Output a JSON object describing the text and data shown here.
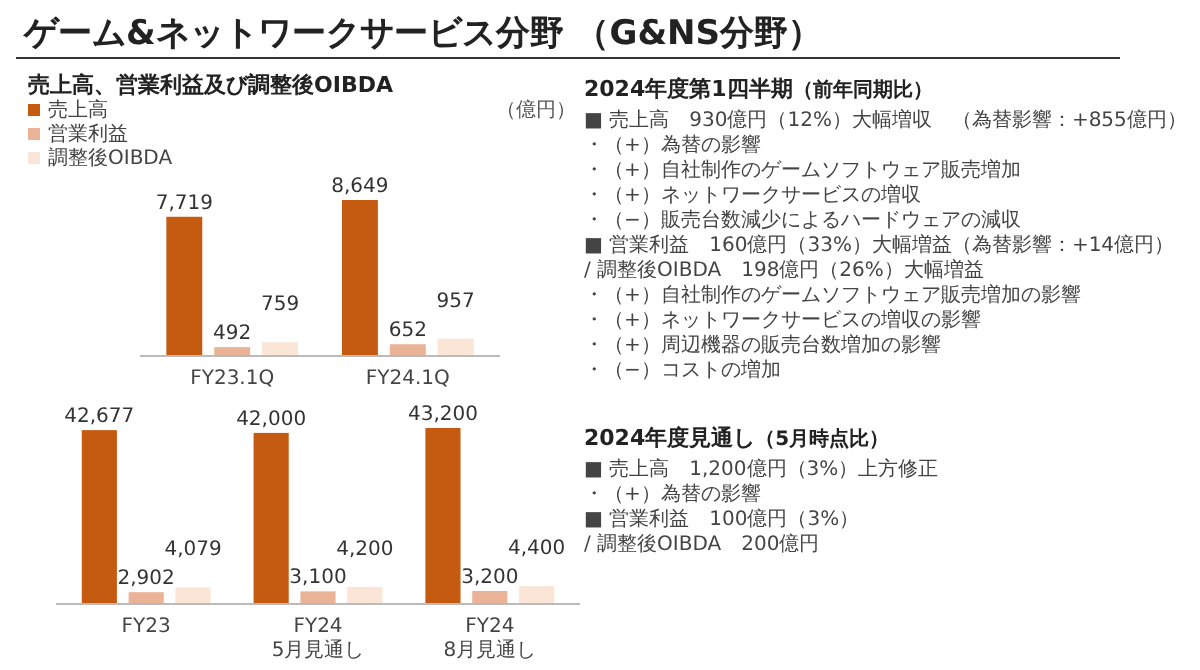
{
  "chart_data": [
    {
      "type": "bar",
      "title": "ゲーム&ネットワークサービス分野 （G&NS分野）",
      "subtitle": "売上高、営業利益及び調整後OIBDA",
      "annotations": [
        "（億円）"
      ],
      "categories": [
        "FY23.1Q",
        "FY24.1Q"
      ],
      "legend": "top left",
      "series": [
        {
          "name": "売上高",
          "color": "#c55a11",
          "values": [
            7719,
            8649
          ],
          "value_labels": [
            "7,719",
            "8,649"
          ]
        },
        {
          "name": "営業利益",
          "color": "#eab398",
          "values": [
            492,
            652
          ],
          "value_labels": [
            "492",
            "652"
          ]
        },
        {
          "name": "調整後OIBDA",
          "color": "#fbe5d6",
          "values": [
            759,
            957
          ],
          "value_labels": [
            "759",
            "957"
          ]
        }
      ]
    },
    {
      "type": "bar",
      "categories": [
        "FY23",
        "FY24 5月見通し",
        "FY24 8月見通し"
      ],
      "series": [
        {
          "color": "#c55a11",
          "values": [
            42677,
            42000,
            43200
          ],
          "value_labels": [
            "42,677",
            "42,000",
            "43,200"
          ]
        },
        {
          "color": "#eab398",
          "values": [
            2902,
            3100,
            3200
          ],
          "value_labels": [
            "2,902",
            "3,100",
            "3,200"
          ]
        },
        {
          "color": "#fbe5d6",
          "values": [
            4079,
            4200,
            4400
          ],
          "value_labels": [
            "4,079",
            "4,200",
            "4,400"
          ]
        }
      ]
    },
    {
      "type": "other",
      "title": "2024年度第1四半期",
      "subtitle": "（前年同期比）",
      "annotations": [
        "■ 売上高　930億円（12%）大幅増収　（為替影響：+855億円）",
        "・（+）為替の影響",
        "・（+）自社制作のゲームソフトウェア販売増加",
        "・（+）ネットワークサービスの増収",
        "・（−）販売台数減少によるハードウェアの減収",
        "■ 営業利益　160億円（33%）大幅増益（為替影響：+14億円）",
        "/ 調整後OIBDA　198億円（26%）大幅増益",
        "・（+）自社制作のゲームソフトウェア販売増加の影響",
        "・（+）ネットワークサービスの増収の影響",
        "・（+）周辺機器の販売台数増加の影響",
        "・（−）コストの増加"
      ]
    },
    {
      "type": "other",
      "title": "2024年度見通し",
      "subtitle": "（5月時点比）",
      "annotations": [
        "■ 売上高　1,200億円（3%）上方修正",
        "・（+）為替の影響",
        "■ 営業利益　100億円（3%）",
        "/ 調整後OIBDA　200億円"
      ]
    }
  ]
}
